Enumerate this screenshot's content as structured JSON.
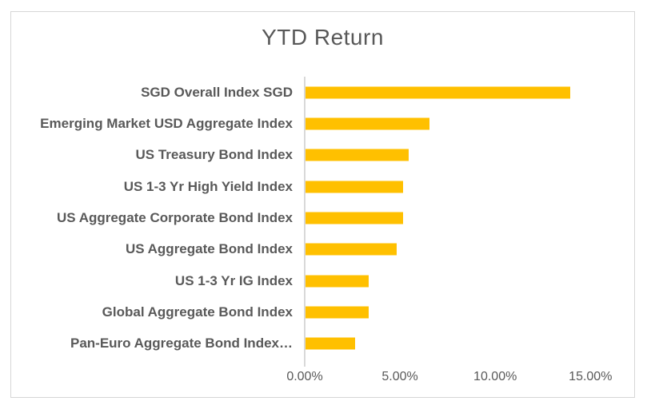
{
  "chart_data": {
    "type": "bar",
    "orientation": "horizontal",
    "title": "YTD Return",
    "categories": [
      "SGD Overall Index SGD",
      "Emerging Market USD Aggregate Index",
      "US Treasury Bond Index",
      "US 1-3 Yr High Yield Index",
      "US Aggregate Corporate Bond Index",
      "US Aggregate Bond Index",
      "US 1-3 Yr IG Index",
      "Global Aggregate Bond Index",
      "Pan-Euro Aggregate Bond Index…"
    ],
    "values": [
      13.9,
      6.5,
      5.4,
      5.1,
      5.1,
      4.8,
      3.3,
      3.3,
      2.6
    ],
    "value_unit": "percent",
    "x_ticks": [
      {
        "label": "0.00%",
        "value": 0
      },
      {
        "label": "5.00%",
        "value": 5
      },
      {
        "label": "10.00%",
        "value": 10
      },
      {
        "label": "15.00%",
        "value": 15
      }
    ],
    "xlim": [
      0,
      15.75
    ],
    "xlabel": "",
    "ylabel": "",
    "grid": false,
    "legend": false,
    "bar_color": "#FFC000",
    "title_color": "#595959",
    "label_color": "#595959",
    "axis_line_color": "#D9D9D9",
    "border_color": "#D6D6D6",
    "background_color": "#FFFFFF"
  }
}
